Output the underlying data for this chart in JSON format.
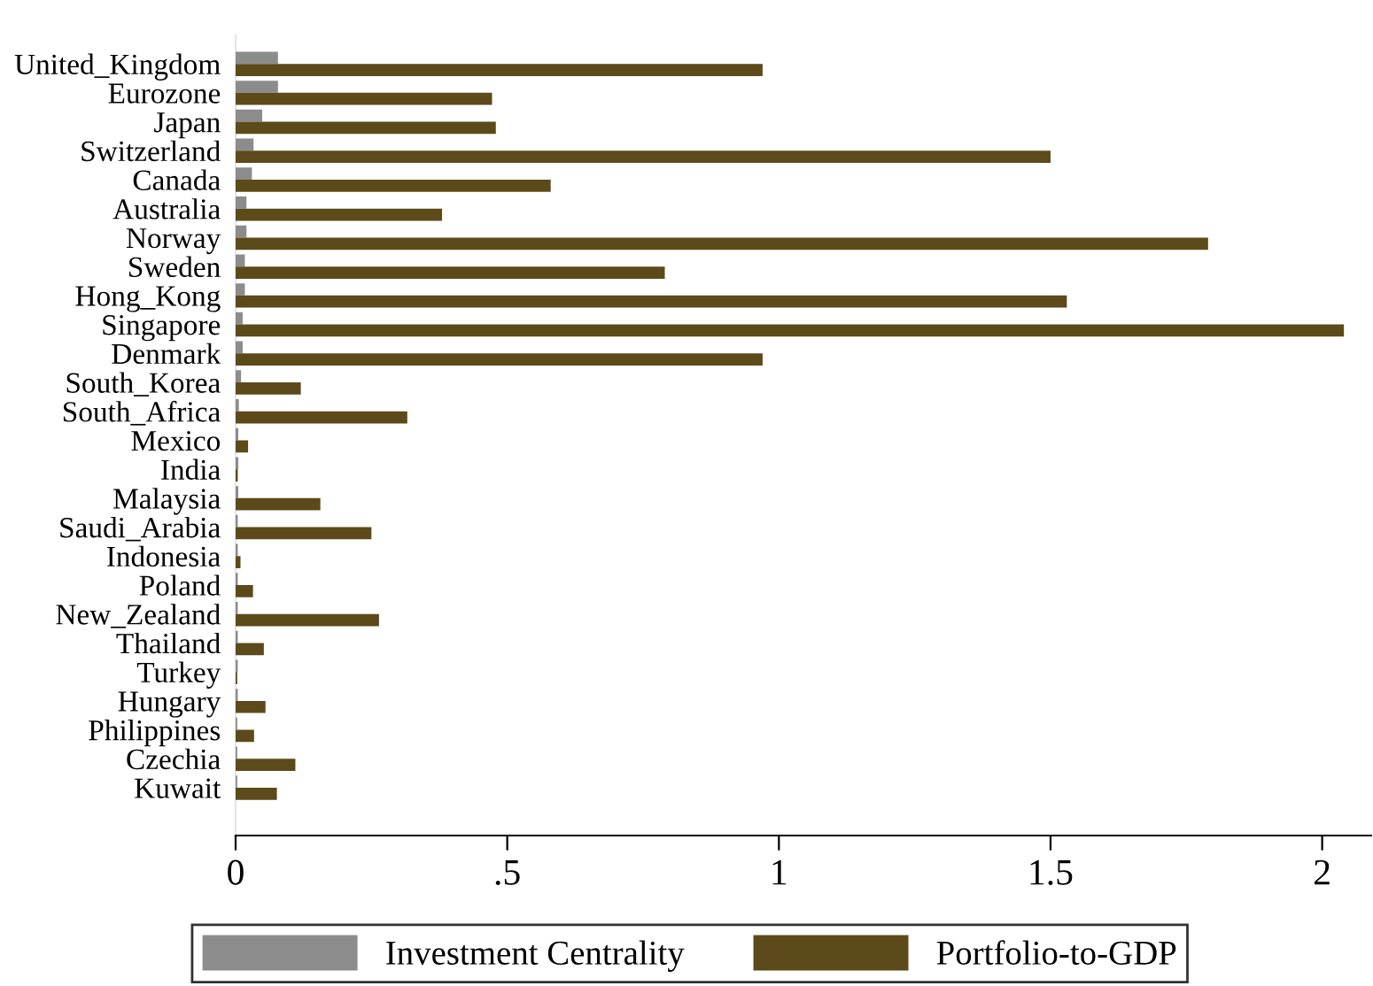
{
  "chart_data": {
    "type": "bar",
    "orientation": "horizontal",
    "categories": [
      "United_Kingdom",
      "Eurozone",
      "Japan",
      "Switzerland",
      "Canada",
      "Australia",
      "Norway",
      "Sweden",
      "Hong_Kong",
      "Singapore",
      "Denmark",
      "South_Korea",
      "South_Africa",
      "Mexico",
      "India",
      "Malaysia",
      "Saudi_Arabia",
      "Indonesia",
      "Poland",
      "New_Zealand",
      "Thailand",
      "Turkey",
      "Hungary",
      "Philippines",
      "Czechia",
      "Kuwait"
    ],
    "series": [
      {
        "name": "Investment Centrality",
        "color": "#8c8c8c",
        "values": [
          0.078,
          0.078,
          0.049,
          0.033,
          0.03,
          0.02,
          0.02,
          0.017,
          0.017,
          0.013,
          0.013,
          0.01,
          0.006,
          0.005,
          0.005,
          0.005,
          0.004,
          0.004,
          0.004,
          0.004,
          0.004,
          0.004,
          0.004,
          0.003,
          0.003,
          0.003
        ]
      },
      {
        "name": "Portfolio-to-GDP",
        "color": "#5c4a1a",
        "values": [
          0.97,
          0.472,
          0.479,
          1.5,
          0.58,
          0.38,
          1.79,
          0.79,
          1.53,
          2.04,
          0.97,
          0.12,
          0.316,
          0.023,
          0.004,
          0.156,
          0.25,
          0.009,
          0.032,
          0.264,
          0.052,
          0.003,
          0.055,
          0.034,
          0.11,
          0.076
        ]
      }
    ],
    "xlim": [
      0,
      2.09
    ],
    "xticks": [
      0,
      {
        "value": 0.5,
        "label": ".5"
      },
      1,
      1.5,
      2
    ],
    "grid": false,
    "legend": "bottom"
  }
}
